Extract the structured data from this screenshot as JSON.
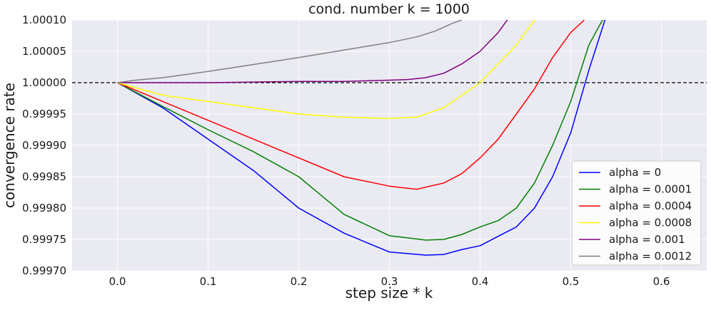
{
  "chart_data": {
    "type": "line",
    "title": "cond. number k = 1000",
    "xlabel": "step size * k",
    "ylabel": "convergence rate",
    "xlim": [
      -0.05,
      0.65
    ],
    "ylim": [
      0.9997,
      1.0001
    ],
    "xticks": [
      "0.0",
      "0.1",
      "0.2",
      "0.3",
      "0.4",
      "0.5",
      "0.6"
    ],
    "xtick_values": [
      0.0,
      0.1,
      0.2,
      0.3,
      0.4,
      0.5,
      0.6
    ],
    "yticks": [
      "0.99970",
      "0.99975",
      "0.99980",
      "0.99985",
      "0.99990",
      "0.99995",
      "1.00000",
      "1.00005",
      "1.00010"
    ],
    "ytick_values": [
      0.9997,
      0.99975,
      0.9998,
      0.99985,
      0.9999,
      0.99995,
      1.0,
      1.00005,
      1.0001
    ],
    "grid": true,
    "background_color": "#eaeaf2",
    "reference_line": {
      "y": 1.0,
      "style": "dashed",
      "color": "#000000"
    },
    "legend_position": "lower-right",
    "series": [
      {
        "name": "alpha = 0",
        "color": "#0000ff",
        "x": [
          0,
          0.05,
          0.1,
          0.15,
          0.2,
          0.25,
          0.3,
          0.34,
          0.36,
          0.38,
          0.4,
          0.42,
          0.44,
          0.46,
          0.48,
          0.5,
          0.52,
          0.54
        ],
        "y": [
          1.0,
          0.99996,
          0.99991,
          0.99986,
          0.9998,
          0.99976,
          0.99973,
          0.999725,
          0.999726,
          0.999734,
          0.99974,
          0.999755,
          0.99977,
          0.9998,
          0.99985,
          0.99992,
          1.00002,
          1.00011
        ]
      },
      {
        "name": "alpha = 0.0001",
        "color": "#008000",
        "x": [
          0,
          0.05,
          0.1,
          0.15,
          0.2,
          0.25,
          0.3,
          0.34,
          0.36,
          0.38,
          0.4,
          0.42,
          0.44,
          0.46,
          0.48,
          0.5,
          0.52,
          0.535
        ],
        "y": [
          1.0,
          0.999962,
          0.999925,
          0.99989,
          0.99985,
          0.99979,
          0.999756,
          0.999749,
          0.99975,
          0.999758,
          0.99977,
          0.99978,
          0.9998,
          0.99984,
          0.9999,
          0.99997,
          1.00006,
          1.0001
        ]
      },
      {
        "name": "alpha = 0.0004",
        "color": "#ff0000",
        "x": [
          0,
          0.05,
          0.1,
          0.15,
          0.2,
          0.25,
          0.3,
          0.33,
          0.36,
          0.38,
          0.4,
          0.42,
          0.44,
          0.46,
          0.48,
          0.5,
          0.515
        ],
        "y": [
          1.0,
          0.99997,
          0.99994,
          0.99991,
          0.99988,
          0.99985,
          0.999835,
          0.99983,
          0.99984,
          0.999855,
          0.99988,
          0.99991,
          0.99995,
          0.99999,
          1.00004,
          1.00008,
          1.0001
        ]
      },
      {
        "name": "alpha = 0.0008",
        "color": "#ffff00",
        "x": [
          0,
          0.05,
          0.1,
          0.15,
          0.2,
          0.25,
          0.3,
          0.33,
          0.36,
          0.38,
          0.4,
          0.42,
          0.44,
          0.46
        ],
        "y": [
          1.0,
          0.99998,
          0.99997,
          0.99996,
          0.99995,
          0.999945,
          0.999943,
          0.999945,
          0.99996,
          0.99998,
          1.0,
          1.00003,
          1.00006,
          1.0001
        ]
      },
      {
        "name": "alpha = 0.001",
        "color": "#800080",
        "x": [
          0,
          0.1,
          0.2,
          0.25,
          0.3,
          0.32,
          0.34,
          0.36,
          0.38,
          0.4,
          0.42,
          0.43
        ],
        "y": [
          1.0,
          1.0,
          1.000002,
          1.000002,
          1.000004,
          1.000005,
          1.000008,
          1.000015,
          1.00003,
          1.00005,
          1.00008,
          1.0001
        ]
      },
      {
        "name": "alpha = 0.0012",
        "color": "#808080",
        "x": [
          0,
          0.02,
          0.05,
          0.1,
          0.15,
          0.2,
          0.25,
          0.3,
          0.33,
          0.35,
          0.37,
          0.38
        ],
        "y": [
          1.0,
          1.000004,
          1.000008,
          1.000018,
          1.000029,
          1.00004,
          1.000052,
          1.000064,
          1.000073,
          1.000082,
          1.000095,
          1.0001
        ]
      }
    ]
  }
}
